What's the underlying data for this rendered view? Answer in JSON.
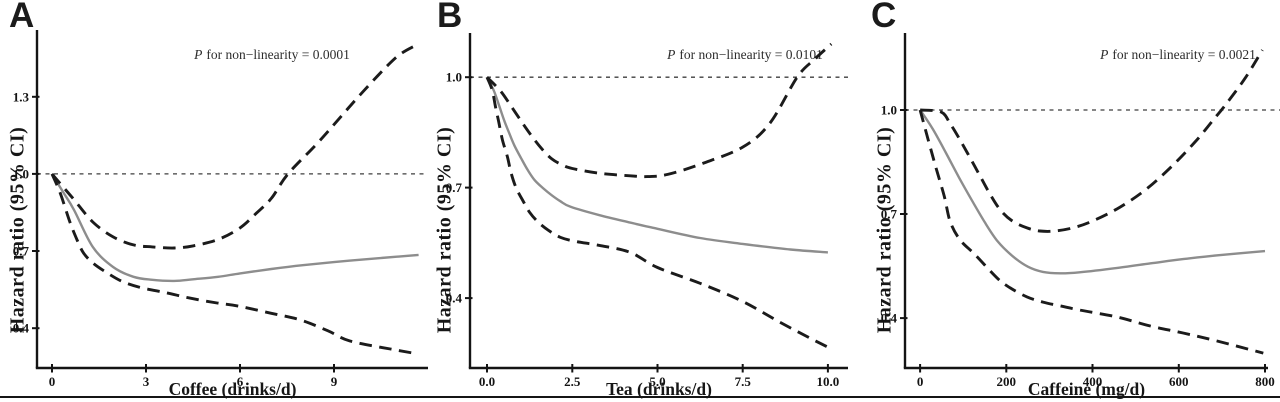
{
  "figure": {
    "background": "#ffffff",
    "bottom_rule_color": "#151515"
  },
  "colors": {
    "hazard_ratio_curve": "#8d8d8d",
    "ci_curve": "#1b1b1b",
    "reference_line": "#3f3f3f",
    "axis": "#141414",
    "text": "#161616"
  },
  "chart_data": [
    {
      "panel_label": "A",
      "type": "line",
      "annotation": {
        "symbol": "P",
        "text": "for non−linearity = 0.0001"
      },
      "xlabel": "Coffee (drinks/d)",
      "ylabel": "Hazard ratio (95% CI)",
      "xlim": [
        -0.48,
        12.0
      ],
      "ylim": [
        0.245,
        1.56
      ],
      "reference_y": 1.0,
      "grid": false,
      "legend": null,
      "x_ticks": {
        "values": [
          0,
          3,
          6,
          9
        ],
        "labels": [
          "0",
          "3",
          "6",
          "9"
        ]
      },
      "y_ticks": {
        "values": [
          1.3,
          1.0,
          0.7,
          0.4
        ],
        "labels": [
          "1.3",
          "1.0",
          "0.7",
          "0.4"
        ]
      },
      "series": [
        {
          "name": "Hazard ratio",
          "style": "solid",
          "x": [
            0,
            0.35,
            0.7,
            1.3,
            1.95,
            2.6,
            3.2,
            3.9,
            4.5,
            5.3,
            6.0,
            7.0,
            8.0,
            9.0,
            10.0,
            11.0,
            11.7
          ],
          "y": [
            1.0,
            0.93,
            0.86,
            0.716,
            0.638,
            0.6,
            0.588,
            0.584,
            0.59,
            0.6,
            0.613,
            0.63,
            0.645,
            0.657,
            0.668,
            0.678,
            0.685
          ]
        },
        {
          "name": "95% CI upper",
          "style": "dashed",
          "x": [
            0,
            0.35,
            0.7,
            1.3,
            1.95,
            2.6,
            3.2,
            3.9,
            4.5,
            5.3,
            6.0,
            6.5,
            7.0,
            7.53,
            8.55,
            9.85,
            10.95,
            11.6
          ],
          "y": [
            1.0,
            0.95,
            0.9,
            0.813,
            0.755,
            0.724,
            0.716,
            0.712,
            0.72,
            0.745,
            0.79,
            0.845,
            0.905,
            1.0,
            1.13,
            1.31,
            1.45,
            1.5
          ]
        },
        {
          "name": "95% CI lower",
          "style": "dashed",
          "x": [
            0,
            0.26,
            0.57,
            0.8,
            1.0,
            1.3,
            1.76,
            2.27,
            2.9,
            3.67,
            4.4,
            5.27,
            5.94,
            7.0,
            7.92,
            8.8,
            9.51,
            10.8,
            11.68
          ],
          "y": [
            1.0,
            0.926,
            0.813,
            0.743,
            0.693,
            0.654,
            0.615,
            0.58,
            0.556,
            0.537,
            0.517,
            0.498,
            0.486,
            0.458,
            0.432,
            0.39,
            0.35,
            0.319,
            0.3
          ]
        }
      ]
    },
    {
      "panel_label": "B",
      "type": "line",
      "annotation": {
        "symbol": "P",
        "text": "for non−linearity = 0.0101"
      },
      "xlabel": "Tea (drinks/d)",
      "ylabel": "Hazard ratio (95% CI)",
      "xlim": [
        -0.5,
        10.59
      ],
      "ylim": [
        0.21,
        1.12
      ],
      "reference_y": 1.0,
      "grid": false,
      "legend": null,
      "x_ticks": {
        "values": [
          0,
          2.5,
          5,
          7.5,
          10
        ],
        "labels": [
          "0.0",
          "2.5",
          "5.0",
          "7.5",
          "10.0"
        ]
      },
      "y_ticks": {
        "values": [
          1.0,
          0.7,
          0.4
        ],
        "labels": [
          "1.0",
          "0.7",
          "0.4"
        ]
      },
      "series": [
        {
          "name": "Hazard ratio",
          "style": "solid",
          "x": [
            0,
            0.2,
            0.35,
            0.5,
            0.65,
            0.8,
            1.0,
            1.2,
            1.4,
            1.65,
            1.9,
            2.15,
            2.45,
            3.3,
            4.2,
            5.0,
            6.25,
            7.5,
            8.9,
            10.0
          ],
          "y": [
            1.0,
            0.963,
            0.924,
            0.883,
            0.848,
            0.815,
            0.78,
            0.747,
            0.72,
            0.698,
            0.679,
            0.663,
            0.648,
            0.625,
            0.605,
            0.588,
            0.563,
            0.547,
            0.532,
            0.524
          ]
        },
        {
          "name": "95% CI upper",
          "style": "dashed",
          "x": [
            0,
            0.4,
            0.7,
            1.0,
            1.3,
            1.6,
            1.9,
            2.2,
            2.5,
            3.3,
            4.2,
            4.7,
            5.3,
            6.3,
            7.5,
            8.3,
            9.1,
            9.6,
            10.1
          ],
          "y": [
            1.0,
            0.962,
            0.922,
            0.881,
            0.841,
            0.806,
            0.778,
            0.762,
            0.752,
            0.739,
            0.732,
            0.73,
            0.736,
            0.765,
            0.81,
            0.875,
            1.0,
            1.048,
            1.09
          ]
        },
        {
          "name": "95% CI lower",
          "style": "dashed",
          "x": [
            0,
            0.15,
            0.25,
            0.35,
            0.45,
            0.6,
            0.7,
            0.85,
            1.05,
            1.25,
            1.5,
            1.8,
            2.15,
            2.6,
            3.3,
            4.2,
            5.0,
            6.25,
            7.5,
            8.6,
            9.5,
            10.1
          ],
          "y": [
            1.0,
            0.965,
            0.918,
            0.875,
            0.83,
            0.783,
            0.742,
            0.7,
            0.665,
            0.633,
            0.606,
            0.584,
            0.565,
            0.554,
            0.543,
            0.524,
            0.483,
            0.44,
            0.391,
            0.334,
            0.29,
            0.262
          ]
        }
      ]
    },
    {
      "panel_label": "C",
      "type": "line",
      "annotation": {
        "symbol": "P",
        "text": "for non−linearity = 0.0021"
      },
      "xlabel": "Caffeine (mg/d)",
      "ylabel": "Hazard ratio (95% CI)",
      "xlim": [
        -35,
        807
      ],
      "ylim": [
        0.256,
        1.222
      ],
      "reference_y": 1.0,
      "grid": false,
      "legend": null,
      "x_ticks": {
        "values": [
          0,
          200,
          400,
          600,
          800
        ],
        "labels": [
          "0",
          "200",
          "400",
          "600",
          "800"
        ]
      },
      "y_ticks": {
        "values": [
          1.0,
          0.7,
          0.4
        ],
        "labels": [
          "1.0",
          "0.7",
          "0.4"
        ]
      },
      "series": [
        {
          "name": "Hazard ratio",
          "style": "solid",
          "x": [
            0,
            30,
            60,
            90,
            120,
            150,
            180,
            215,
            250,
            285,
            325,
            370,
            460,
            535,
            610,
            690,
            800
          ],
          "y": [
            1.0,
            0.944,
            0.876,
            0.806,
            0.74,
            0.676,
            0.621,
            0.578,
            0.548,
            0.533,
            0.529,
            0.532,
            0.545,
            0.558,
            0.57,
            0.581,
            0.593
          ]
        },
        {
          "name": "95% CI upper",
          "style": "dashed",
          "x": [
            0,
            49,
            70,
            93,
            116,
            139,
            162,
            186,
            214,
            248,
            278,
            313,
            360,
            406,
            464,
            522,
            580,
            638,
            680,
            708,
            754,
            794
          ],
          "y": [
            1.0,
            0.994,
            0.96,
            0.913,
            0.862,
            0.81,
            0.758,
            0.712,
            0.68,
            0.66,
            0.651,
            0.651,
            0.662,
            0.683,
            0.72,
            0.769,
            0.833,
            0.908,
            0.971,
            1.014,
            1.092,
            1.173
          ]
        },
        {
          "name": "95% CI lower",
          "style": "dashed",
          "x": [
            0,
            19,
            37,
            56,
            70,
            93,
            128,
            179,
            209,
            248,
            285,
            325,
            371,
            457,
            534,
            610,
            689,
            796
          ],
          "y": [
            1.0,
            0.913,
            0.833,
            0.752,
            0.677,
            0.625,
            0.582,
            0.515,
            0.487,
            0.461,
            0.446,
            0.435,
            0.423,
            0.403,
            0.377,
            0.357,
            0.334,
            0.299
          ]
        }
      ]
    }
  ]
}
